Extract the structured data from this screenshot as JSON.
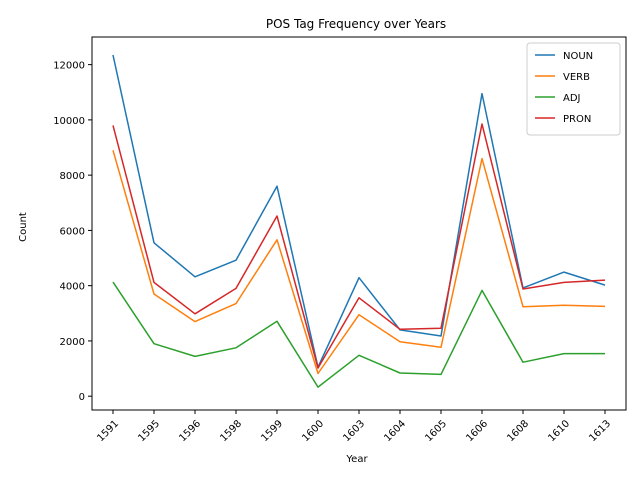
{
  "chart_data": {
    "type": "line",
    "title": "POS Tag Frequency over Years",
    "xlabel": "Year",
    "ylabel": "Count",
    "categories": [
      "1591",
      "1595",
      "1596",
      "1598",
      "1599",
      "1600",
      "1603",
      "1604",
      "1605",
      "1606",
      "1608",
      "1610",
      "1613"
    ],
    "ylim": [
      -500,
      13000
    ],
    "yticks": [
      0,
      2000,
      4000,
      6000,
      8000,
      10000,
      12000
    ],
    "legend_position": "top-right",
    "grid": false,
    "series": [
      {
        "name": "NOUN",
        "color": "#1f77b4",
        "values": [
          12350,
          5550,
          4320,
          4920,
          7600,
          1050,
          4290,
          2400,
          2180,
          10950,
          3920,
          4490,
          4020
        ]
      },
      {
        "name": "VERB",
        "color": "#ff7f0e",
        "values": [
          8900,
          3700,
          2700,
          3350,
          5660,
          820,
          2950,
          1970,
          1770,
          8600,
          3240,
          3290,
          3250
        ]
      },
      {
        "name": "ADJ",
        "color": "#2ca02c",
        "values": [
          4130,
          1900,
          1440,
          1750,
          2710,
          330,
          1480,
          840,
          790,
          3830,
          1230,
          1540,
          1540
        ]
      },
      {
        "name": "PRON",
        "color": "#d62728",
        "values": [
          9800,
          4120,
          2980,
          3900,
          6520,
          1020,
          3560,
          2420,
          2460,
          9850,
          3880,
          4120,
          4200
        ]
      }
    ]
  }
}
